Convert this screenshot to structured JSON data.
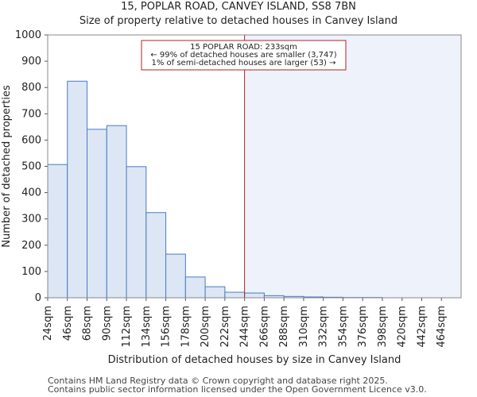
{
  "header": {
    "title": "15, POPLAR ROAD, CANVEY ISLAND, SS8 7BN",
    "subtitle": "Size of property relative to detached houses in Canvey Island"
  },
  "chart_data": {
    "type": "bar",
    "title": "15, POPLAR ROAD, CANVEY ISLAND, SS8 7BN",
    "subtitle": "Size of property relative to detached houses in Canvey Island",
    "xlabel": "Distribution of detached houses by size in Canvey Island",
    "ylabel": "Number of detached properties",
    "ylim": [
      0,
      1000
    ],
    "yticks": [
      0,
      100,
      200,
      300,
      400,
      500,
      600,
      700,
      800,
      900,
      1000
    ],
    "categories": [
      "24sqm",
      "46sqm",
      "68sqm",
      "90sqm",
      "112sqm",
      "134sqm",
      "156sqm",
      "178sqm",
      "200sqm",
      "222sqm",
      "244sqm",
      "266sqm",
      "288sqm",
      "310sqm",
      "332sqm",
      "354sqm",
      "376sqm",
      "398sqm",
      "420sqm",
      "442sqm",
      "464sqm"
    ],
    "values": [
      507,
      824,
      641,
      655,
      499,
      324,
      166,
      79,
      42,
      21,
      18,
      8,
      5,
      3,
      2,
      1,
      1,
      0,
      0,
      0,
      0
    ],
    "marker": {
      "value_sqm": 233,
      "annotation_lines": [
        "15 POPLAR ROAD: 233sqm",
        "← 99% of detached houses are smaller (3,747)",
        "1% of semi-detached houses are larger (53) →"
      ]
    },
    "grid": false,
    "bar_color": "#dce6f4",
    "bar_edge_color": "#4a7bbf",
    "highlight_color": "#eef2fb",
    "marker_color": "#b22222"
  },
  "footer": {
    "line1": "Contains HM Land Registry data © Crown copyright and database right 2025.",
    "line2": "Contains public sector information licensed under the Open Government Licence v3.0."
  }
}
